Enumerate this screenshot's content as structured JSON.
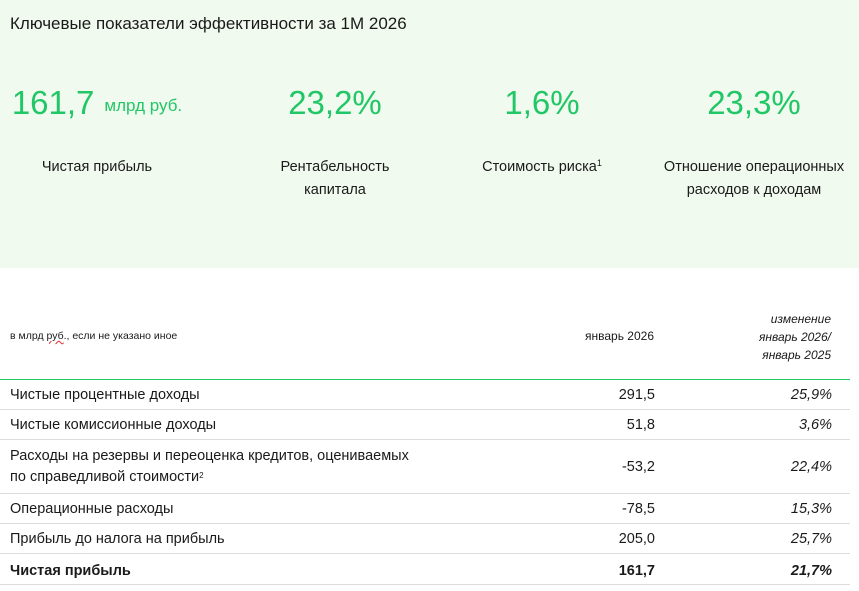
{
  "panel": {
    "title": "Ключевые показатели эффективности за 1М 2026",
    "kpis": [
      {
        "value": "161,7",
        "unit": "млрд руб.",
        "label": "Чистая прибыль",
        "footnote": ""
      },
      {
        "value": "23,2%",
        "unit": "",
        "label": "Рентабельность капитала",
        "footnote": ""
      },
      {
        "value": "1,6%",
        "unit": "",
        "label": "Стоимость риска",
        "footnote": "1"
      },
      {
        "value": "23,3%",
        "unit": "",
        "label": "Отношение операционных расходов к доходам",
        "footnote": ""
      }
    ]
  },
  "table": {
    "units_note_prefix": "в млрд ",
    "units_note_underlined": "руб",
    "units_note_suffix": "., если не указано иное",
    "period_header": "январь 2026",
    "change_header": [
      "изменение",
      "январь 2026/",
      "январь 2025"
    ],
    "rows": [
      {
        "label": "Чистые процентные доходы",
        "footnote": "",
        "value": "291,5",
        "change": "25,9%"
      },
      {
        "label": "Чистые комиссионные доходы",
        "footnote": "",
        "value": "51,8",
        "change": "3,6%"
      },
      {
        "label": "Расходы на резервы и переоценка кредитов, оцениваемых по справедливой стоимости",
        "footnote": "2",
        "value": "-53,2",
        "change": "22,4%"
      },
      {
        "label": "Операционные расходы",
        "footnote": "",
        "value": "-78,5",
        "change": "15,3%"
      },
      {
        "label": "Прибыль до налога на прибыль",
        "footnote": "",
        "value": "205,0",
        "change": "25,7%"
      },
      {
        "label": "Чистая прибыль",
        "footnote": "",
        "value": "161,7",
        "change": "21,7%"
      }
    ]
  },
  "colors": {
    "accent_green": "#21c766",
    "panel_background": "#f1faee",
    "row_divider": "#dcdcdc"
  }
}
